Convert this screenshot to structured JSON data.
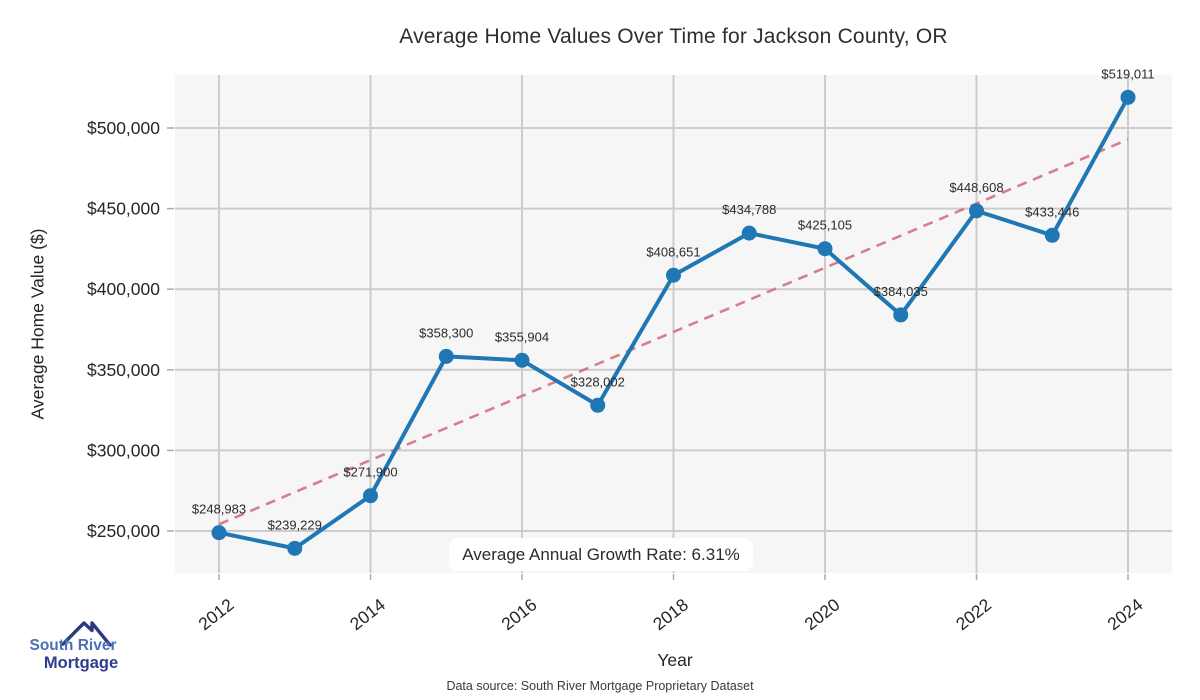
{
  "figure": {
    "title": "Average Home Values Over Time for Jackson County, OR",
    "x_axis_label": "Year",
    "y_axis_label": "Average Home Value ($)",
    "annotation": "Average Annual Growth Rate: 6.31%",
    "source_note": "Data source: South River Mortgage Proprietary Dataset",
    "logo": {
      "line1": "South River",
      "line2": "Mortgage"
    }
  },
  "colors": {
    "line": "#1f77b4",
    "marker": "#1f77b4",
    "trend": "#d4737e",
    "plot_background": "#f6f6f6",
    "grid": "#cccccc",
    "tick": "#aaaaaa",
    "text": "#262626",
    "logo_light_blue": "#4a6fb6",
    "logo_dark_blue": "#303c8f",
    "logo_roof": "#2b3a80"
  },
  "chart_data": {
    "type": "line",
    "title": "Average Home Values Over Time for Jackson County, OR",
    "xlabel": "Year",
    "ylabel": "Average Home Value ($)",
    "x": [
      2012,
      2013,
      2014,
      2015,
      2016,
      2017,
      2018,
      2019,
      2020,
      2021,
      2022,
      2023,
      2024
    ],
    "series": [
      {
        "name": "Average Home Value",
        "values": [
          248983,
          239229,
          271900,
          358300,
          355904,
          328002,
          408651,
          434788,
          425105,
          384035,
          448608,
          433446,
          519011
        ]
      }
    ],
    "point_labels": [
      "$248,983",
      "$239,229",
      "$271,900",
      "$358,300",
      "$355,904",
      "$328,002",
      "$408,651",
      "$434,788",
      "$425,105",
      "$384,035",
      "$448,608",
      "$433,446",
      "$519,011"
    ],
    "xticks": [
      2012,
      2014,
      2016,
      2018,
      2020,
      2022,
      2024
    ],
    "yticks": [
      {
        "value": 250000,
        "label": "$250,000"
      },
      {
        "value": 300000,
        "label": "$300,000"
      },
      {
        "value": 350000,
        "label": "$350,000"
      },
      {
        "value": 400000,
        "label": "$400,000"
      },
      {
        "value": 450000,
        "label": "$450,000"
      },
      {
        "value": 500000,
        "label": "$500,000"
      }
    ],
    "xlim": [
      2011.4,
      2024.6
    ],
    "ylim": [
      224000,
      533000
    ],
    "grid": true,
    "legend": "none",
    "trendline": {
      "type": "linear_regression",
      "style": "dashed",
      "start_x": 2012,
      "start_value": 254178,
      "end_x": 2024,
      "end_value": 492894
    },
    "annotation": "Average Annual Growth Rate: 6.31%"
  }
}
